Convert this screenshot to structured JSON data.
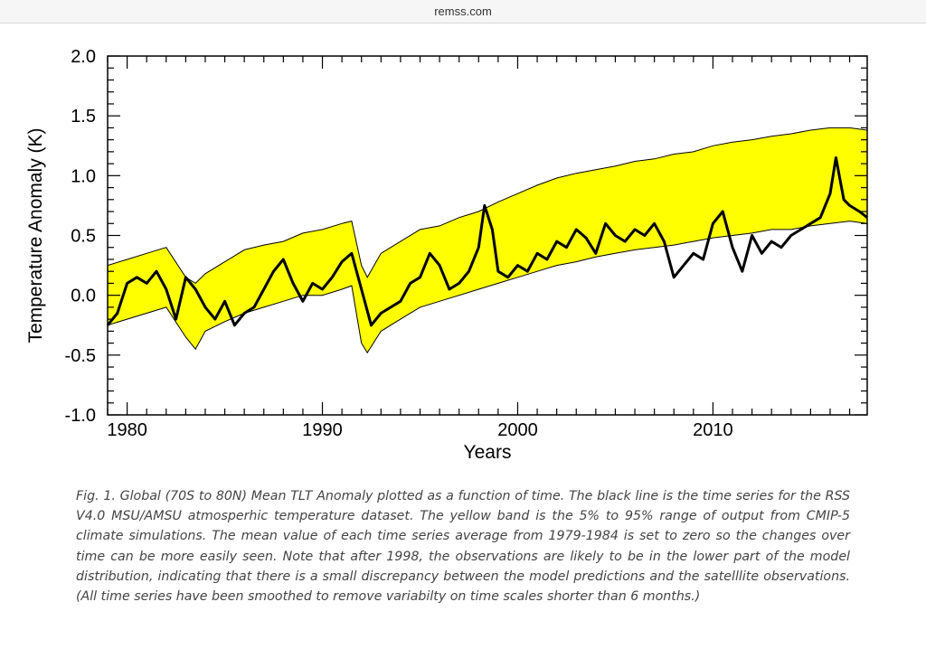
{
  "header": {
    "url": "remss.com"
  },
  "chart_data": {
    "type": "line",
    "xlabel": "Years",
    "ylabel": "Temperature Anomaly (K)",
    "xlim": [
      1979,
      2017.9
    ],
    "ylim": [
      -1.0,
      2.0
    ],
    "x_ticks": [
      1980,
      1990,
      2000,
      2010
    ],
    "x_tick_labels": [
      "1980",
      "1990",
      "2000",
      "2010"
    ],
    "y_ticks": [
      -1.0,
      -0.5,
      0.0,
      0.5,
      1.0,
      1.5,
      2.0
    ],
    "y_tick_labels": [
      "-1.0",
      "-0.5",
      "0.0",
      "0.5",
      "1.0",
      "1.5",
      "2.0"
    ],
    "grid": false,
    "colors": {
      "band": "#ffff00",
      "line": "#000000"
    },
    "band": {
      "x": [
        1979,
        1980,
        1981,
        1982,
        1983,
        1983.5,
        1984,
        1985,
        1986,
        1987,
        1988,
        1989,
        1990,
        1991,
        1991.5,
        1992,
        1992.3,
        1993,
        1994,
        1995,
        1996,
        1997,
        1998,
        1999,
        2000,
        2001,
        2002,
        2003,
        2004,
        2005,
        2006,
        2007,
        2008,
        2009,
        2010,
        2011,
        2012,
        2013,
        2014,
        2015,
        2016,
        2017,
        2017.9
      ],
      "upper": [
        0.25,
        0.3,
        0.35,
        0.4,
        0.15,
        0.1,
        0.18,
        0.28,
        0.38,
        0.42,
        0.45,
        0.52,
        0.55,
        0.6,
        0.62,
        0.25,
        0.15,
        0.35,
        0.45,
        0.55,
        0.58,
        0.65,
        0.7,
        0.78,
        0.85,
        0.92,
        0.98,
        1.02,
        1.05,
        1.08,
        1.12,
        1.14,
        1.18,
        1.2,
        1.25,
        1.28,
        1.3,
        1.33,
        1.35,
        1.38,
        1.4,
        1.4,
        1.38
      ],
      "lower": [
        -0.25,
        -0.2,
        -0.15,
        -0.1,
        -0.35,
        -0.45,
        -0.3,
        -0.22,
        -0.15,
        -0.1,
        -0.05,
        0.0,
        0.0,
        0.05,
        0.08,
        -0.4,
        -0.48,
        -0.3,
        -0.2,
        -0.1,
        -0.05,
        0.0,
        0.05,
        0.1,
        0.15,
        0.2,
        0.25,
        0.28,
        0.32,
        0.35,
        0.38,
        0.4,
        0.42,
        0.45,
        0.48,
        0.5,
        0.52,
        0.55,
        0.55,
        0.58,
        0.6,
        0.62,
        0.6
      ]
    },
    "series": [
      {
        "x": [
          1979,
          1979.5,
          1980,
          1980.5,
          1981,
          1981.5,
          1982,
          1982.5,
          1983,
          1983.5,
          1984,
          1984.5,
          1985,
          1985.5,
          1986,
          1986.5,
          1987,
          1987.5,
          1988,
          1988.5,
          1989,
          1989.5,
          1990,
          1990.5,
          1991,
          1991.5,
          1992,
          1992.5,
          1993,
          1993.5,
          1994,
          1994.5,
          1995,
          1995.5,
          1996,
          1996.5,
          1997,
          1997.5,
          1998,
          1998.3,
          1998.7,
          1999,
          1999.5,
          2000,
          2000.5,
          2001,
          2001.5,
          2002,
          2002.5,
          2003,
          2003.5,
          2004,
          2004.5,
          2005,
          2005.5,
          2006,
          2006.5,
          2007,
          2007.5,
          2008,
          2008.5,
          2009,
          2009.5,
          2010,
          2010.5,
          2011,
          2011.5,
          2012,
          2012.5,
          2013,
          2013.5,
          2014,
          2014.5,
          2015,
          2015.5,
          2016,
          2016.3,
          2016.7,
          2017,
          2017.5,
          2017.9
        ],
        "values": [
          -0.25,
          -0.15,
          0.1,
          0.15,
          0.1,
          0.2,
          0.05,
          -0.2,
          0.15,
          0.05,
          -0.1,
          -0.2,
          -0.05,
          -0.25,
          -0.15,
          -0.1,
          0.05,
          0.2,
          0.3,
          0.1,
          -0.05,
          0.1,
          0.05,
          0.15,
          0.28,
          0.35,
          0.05,
          -0.25,
          -0.15,
          -0.1,
          -0.05,
          0.1,
          0.15,
          0.35,
          0.25,
          0.05,
          0.1,
          0.2,
          0.4,
          0.75,
          0.55,
          0.2,
          0.15,
          0.25,
          0.2,
          0.35,
          0.3,
          0.45,
          0.4,
          0.55,
          0.48,
          0.35,
          0.6,
          0.5,
          0.45,
          0.55,
          0.5,
          0.6,
          0.45,
          0.15,
          0.25,
          0.35,
          0.3,
          0.6,
          0.7,
          0.4,
          0.2,
          0.5,
          0.35,
          0.45,
          0.4,
          0.5,
          0.55,
          0.6,
          0.65,
          0.85,
          1.15,
          0.8,
          0.75,
          0.7,
          0.65
        ]
      }
    ]
  },
  "caption": "Fig. 1.  Global (70S to 80N) Mean TLT Anomaly plotted as a function of time.  The black line is the time series for the  RSS V4.0 MSU/AMSU atmosperhic temperature dataset.  The yellow band is the 5% to 95% range of output from CMIP-5 climate simulations.  The mean value of each time series average from 1979-1984 is set to zero so the changes over time can be more easily seen.  Note that after 1998, the observations are likely to be in the lower part of the model distribution, indicating that there is a small discrepancy between the model predictions and the satelllite observations.(All time series have been smoothed to remove variabilty on time scales shorter than 6 months.)"
}
